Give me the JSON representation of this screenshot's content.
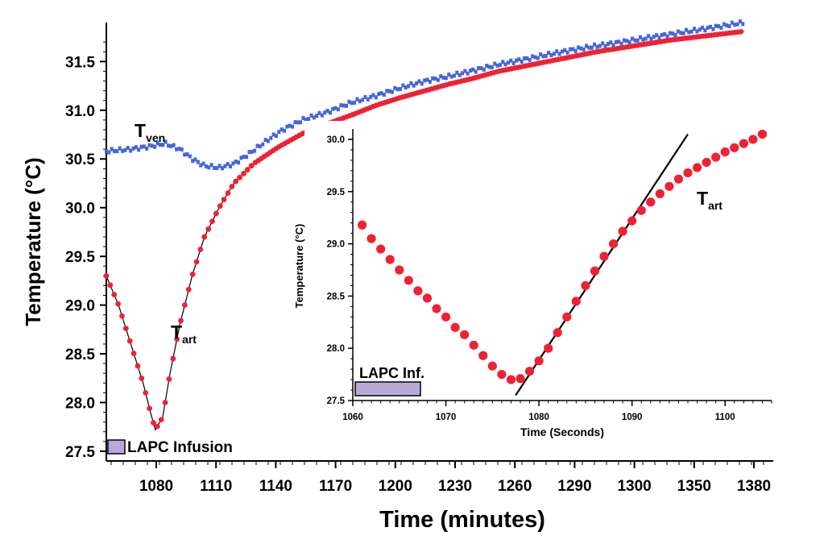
{
  "colors": {
    "tart": "#ee2233",
    "tven": "#4466dd",
    "infusion_bar": "#b9a9d9",
    "fit_line": "#000000"
  },
  "chart_data": [
    {
      "type": "scatter",
      "xlabel": "Time (minutes)",
      "ylabel": "Temperature (°C)",
      "x_tick_labels": [
        "1080",
        "1110",
        "1140",
        "1170",
        "1200",
        "1230",
        "1260",
        "1290",
        "1300",
        "1350",
        "1380"
      ],
      "y_ticks": [
        "27.5",
        "28.0",
        "28.5",
        "29.0",
        "29.5",
        "30.0",
        "30.5",
        "31.0",
        "31.5"
      ],
      "ylim": [
        27.4,
        31.9
      ],
      "series": [
        {
          "name": "Tart",
          "name_main": "T",
          "name_sub": "art",
          "style": "red markers",
          "points": [
            [
              0,
              29.3
            ],
            [
              0.5,
              29.0
            ],
            [
              1,
              28.6
            ],
            [
              1.5,
              28.2
            ],
            [
              1.8,
              27.9
            ],
            [
              2.0,
              27.72
            ],
            [
              2.3,
              27.85
            ],
            [
              2.6,
              28.3
            ],
            [
              3.0,
              28.8
            ],
            [
              3.5,
              29.3
            ],
            [
              4.0,
              29.7
            ],
            [
              4.6,
              30.0
            ],
            [
              5.2,
              30.25
            ],
            [
              6,
              30.45
            ],
            [
              7,
              30.62
            ],
            [
              8,
              30.76
            ],
            [
              9,
              30.86
            ],
            [
              10,
              30.95
            ],
            [
              11,
              31.05
            ],
            [
              12,
              31.13
            ],
            [
              13,
              31.2
            ],
            [
              14,
              31.27
            ],
            [
              15,
              31.33
            ],
            [
              16,
              31.4
            ],
            [
              17,
              31.45
            ],
            [
              18,
              31.5
            ],
            [
              19,
              31.55
            ],
            [
              20,
              31.6
            ],
            [
              21,
              31.64
            ],
            [
              22,
              31.68
            ],
            [
              23,
              31.72
            ],
            [
              24,
              31.75
            ],
            [
              25,
              31.78
            ],
            [
              26,
              31.81
            ]
          ]
        },
        {
          "name": "Tven",
          "name_main": "T",
          "name_sub": "ven",
          "style": "blue markers",
          "points": [
            [
              0,
              30.58
            ],
            [
              1,
              30.6
            ],
            [
              1.8,
              30.63
            ],
            [
              2.4,
              30.66
            ],
            [
              3.0,
              30.6
            ],
            [
              3.5,
              30.5
            ],
            [
              4.0,
              30.43
            ],
            [
              4.6,
              30.41
            ],
            [
              5.2,
              30.45
            ],
            [
              5.8,
              30.55
            ],
            [
              6.5,
              30.68
            ],
            [
              7.2,
              30.8
            ],
            [
              8,
              30.9
            ],
            [
              9,
              30.98
            ],
            [
              10,
              31.08
            ],
            [
              11,
              31.15
            ],
            [
              12,
              31.23
            ],
            [
              13,
              31.3
            ],
            [
              14,
              31.35
            ],
            [
              15,
              31.41
            ],
            [
              16,
              31.47
            ],
            [
              17,
              31.52
            ],
            [
              18,
              31.57
            ],
            [
              19,
              31.62
            ],
            [
              20,
              31.66
            ],
            [
              21,
              31.7
            ],
            [
              22,
              31.74
            ],
            [
              23,
              31.78
            ],
            [
              24,
              31.82
            ],
            [
              25,
              31.86
            ],
            [
              26,
              31.9
            ]
          ]
        }
      ],
      "annotations": [
        {
          "kind": "bar",
          "label": "LAPC Infusion",
          "x_range": [
            0,
            0.7
          ],
          "y": 27.55
        }
      ]
    },
    {
      "type": "scatter",
      "xlabel": "Time (Seconds)",
      "ylabel": "Temperature (°C)",
      "x_ticks": [
        1060,
        1070,
        1080,
        1090,
        1100
      ],
      "xlim": [
        1060,
        1105
      ],
      "y_ticks": [
        "27.5",
        "28.0",
        "28.5",
        "29.0",
        "29.5",
        "30.0"
      ],
      "ylim": [
        27.5,
        30.1
      ],
      "series": [
        {
          "name": "Tart",
          "name_main": "T",
          "name_sub": "art",
          "style": "red markers",
          "points": [
            [
              1061,
              29.18
            ],
            [
              1062,
              29.05
            ],
            [
              1063,
              28.95
            ],
            [
              1064,
              28.85
            ],
            [
              1065,
              28.75
            ],
            [
              1066,
              28.65
            ],
            [
              1067,
              28.55
            ],
            [
              1068,
              28.48
            ],
            [
              1069,
              28.38
            ],
            [
              1070,
              28.3
            ],
            [
              1071,
              28.2
            ],
            [
              1072,
              28.13
            ],
            [
              1073,
              28.03
            ],
            [
              1074,
              27.93
            ],
            [
              1075,
              27.83
            ],
            [
              1076,
              27.75
            ],
            [
              1077,
              27.7
            ],
            [
              1078,
              27.71
            ],
            [
              1079,
              27.78
            ],
            [
              1080,
              27.88
            ],
            [
              1081,
              28.0
            ],
            [
              1082,
              28.15
            ],
            [
              1083,
              28.3
            ],
            [
              1084,
              28.45
            ],
            [
              1085,
              28.6
            ],
            [
              1086,
              28.74
            ],
            [
              1087,
              28.88
            ],
            [
              1088,
              29.0
            ],
            [
              1089,
              29.12
            ],
            [
              1090,
              29.22
            ],
            [
              1091,
              29.32
            ],
            [
              1092,
              29.4
            ],
            [
              1093,
              29.48
            ],
            [
              1094,
              29.55
            ],
            [
              1095,
              29.62
            ],
            [
              1096,
              29.68
            ],
            [
              1097,
              29.73
            ],
            [
              1098,
              29.78
            ],
            [
              1099,
              29.83
            ],
            [
              1100,
              29.88
            ],
            [
              1101,
              29.92
            ],
            [
              1102,
              29.96
            ],
            [
              1103,
              30.0
            ],
            [
              1104,
              30.05
            ]
          ]
        }
      ],
      "fit_line": {
        "from": [
          1077.5,
          27.55
        ],
        "to": [
          1096,
          30.05
        ]
      },
      "annotations": [
        {
          "kind": "bar",
          "label": "LAPC Inf.",
          "x_range": [
            1060,
            1067
          ],
          "y": 27.56
        }
      ]
    }
  ]
}
